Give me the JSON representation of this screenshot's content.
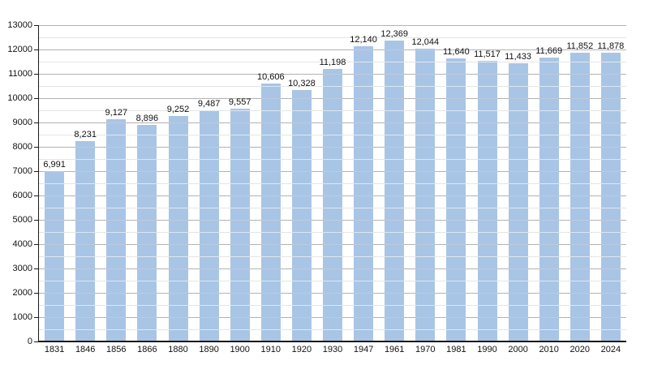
{
  "chart_data": {
    "type": "bar",
    "title": "",
    "xlabel": "",
    "ylabel": "",
    "categories": [
      "1831",
      "1846",
      "1856",
      "1866",
      "1880",
      "1890",
      "1900",
      "1910",
      "1920",
      "1930",
      "1947",
      "1961",
      "1970",
      "1981",
      "1990",
      "2000",
      "2010",
      "2020",
      "2024"
    ],
    "values": [
      6991,
      8231,
      9127,
      8896,
      9252,
      9487,
      9557,
      10606,
      10328,
      11198,
      12140,
      12369,
      12044,
      11640,
      11517,
      11433,
      11669,
      11852,
      11878
    ],
    "value_labels": [
      "6,991",
      "8,231",
      "9,127",
      "8,896",
      "9,252",
      "9,487",
      "9,557",
      "10,606",
      "10,328",
      "11,198",
      "12,140",
      "12,369",
      "12,044",
      "11,640",
      "11,517",
      "11,433",
      "11,669",
      "11,852",
      "11,878"
    ],
    "ylim": [
      0,
      13000
    ],
    "y_major_step": 1000,
    "y_minor_step": 500,
    "y_tick_labels": [
      "0",
      "1000",
      "2000",
      "3000",
      "4000",
      "5000",
      "6000",
      "7000",
      "8000",
      "9000",
      "10000",
      "11000",
      "12000",
      "13000"
    ],
    "grid": "major-and-minor, horizontal only",
    "legend": "none",
    "colors": {
      "bar": "#a9c5e5",
      "bar_line_minor": "#dce7f3",
      "bar_line_major": "#bccbdf",
      "grid_major": "#b3b3b3",
      "grid_minor": "#e5e5e5",
      "axis": "#1a1a1a",
      "text": "#111111"
    }
  }
}
